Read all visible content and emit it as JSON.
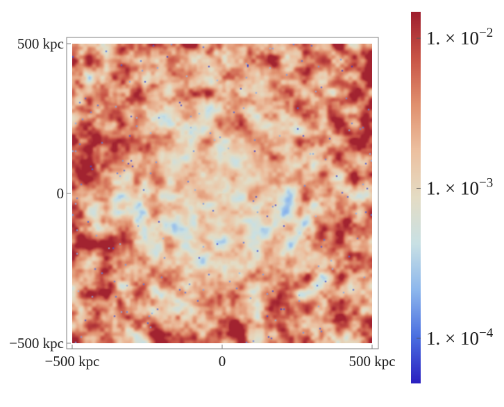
{
  "chart_data": {
    "type": "heatmap",
    "description": "",
    "x_axis": {
      "unit": "kpc",
      "ticks": [
        {
          "value": -500,
          "label": "−500 kpc"
        },
        {
          "value": 0,
          "label": "0"
        },
        {
          "value": 500,
          "label": "500 kpc"
        }
      ],
      "range": [
        -500,
        500
      ]
    },
    "y_axis": {
      "unit": "kpc",
      "ticks": [
        {
          "value": 500,
          "label": "500 kpc"
        },
        {
          "value": 0,
          "label": "0"
        },
        {
          "value": -500,
          "label": "−500 kpc"
        }
      ],
      "range": [
        -500,
        500
      ]
    },
    "colorbar": {
      "scale": "log",
      "range": [
        5e-05,
        0.015
      ],
      "ticks": [
        {
          "value": 0.01,
          "mantissa": "1.",
          "times": "×",
          "base": "10",
          "exponent": "−2"
        },
        {
          "value": 0.001,
          "mantissa": "1.",
          "times": "×",
          "base": "10",
          "exponent": "−3"
        },
        {
          "value": 0.0001,
          "mantissa": "1.",
          "times": "×",
          "base": "10",
          "exponent": "−4"
        }
      ],
      "colormap": [
        "#2a1fc0",
        "#4a6ee0",
        "#8cb6ec",
        "#c8e0e4",
        "#e4dcc4",
        "#ecc0a0",
        "#e0906e",
        "#c85446",
        "#9e1e2e"
      ]
    },
    "field": {
      "pattern": "turbulent, amplitude rising from center toward edges",
      "center_level": 0.0009,
      "edge_level": 0.004,
      "min_level": 6e-05,
      "max_level": 0.014
    },
    "grid": false,
    "legend": "colorbar right"
  }
}
